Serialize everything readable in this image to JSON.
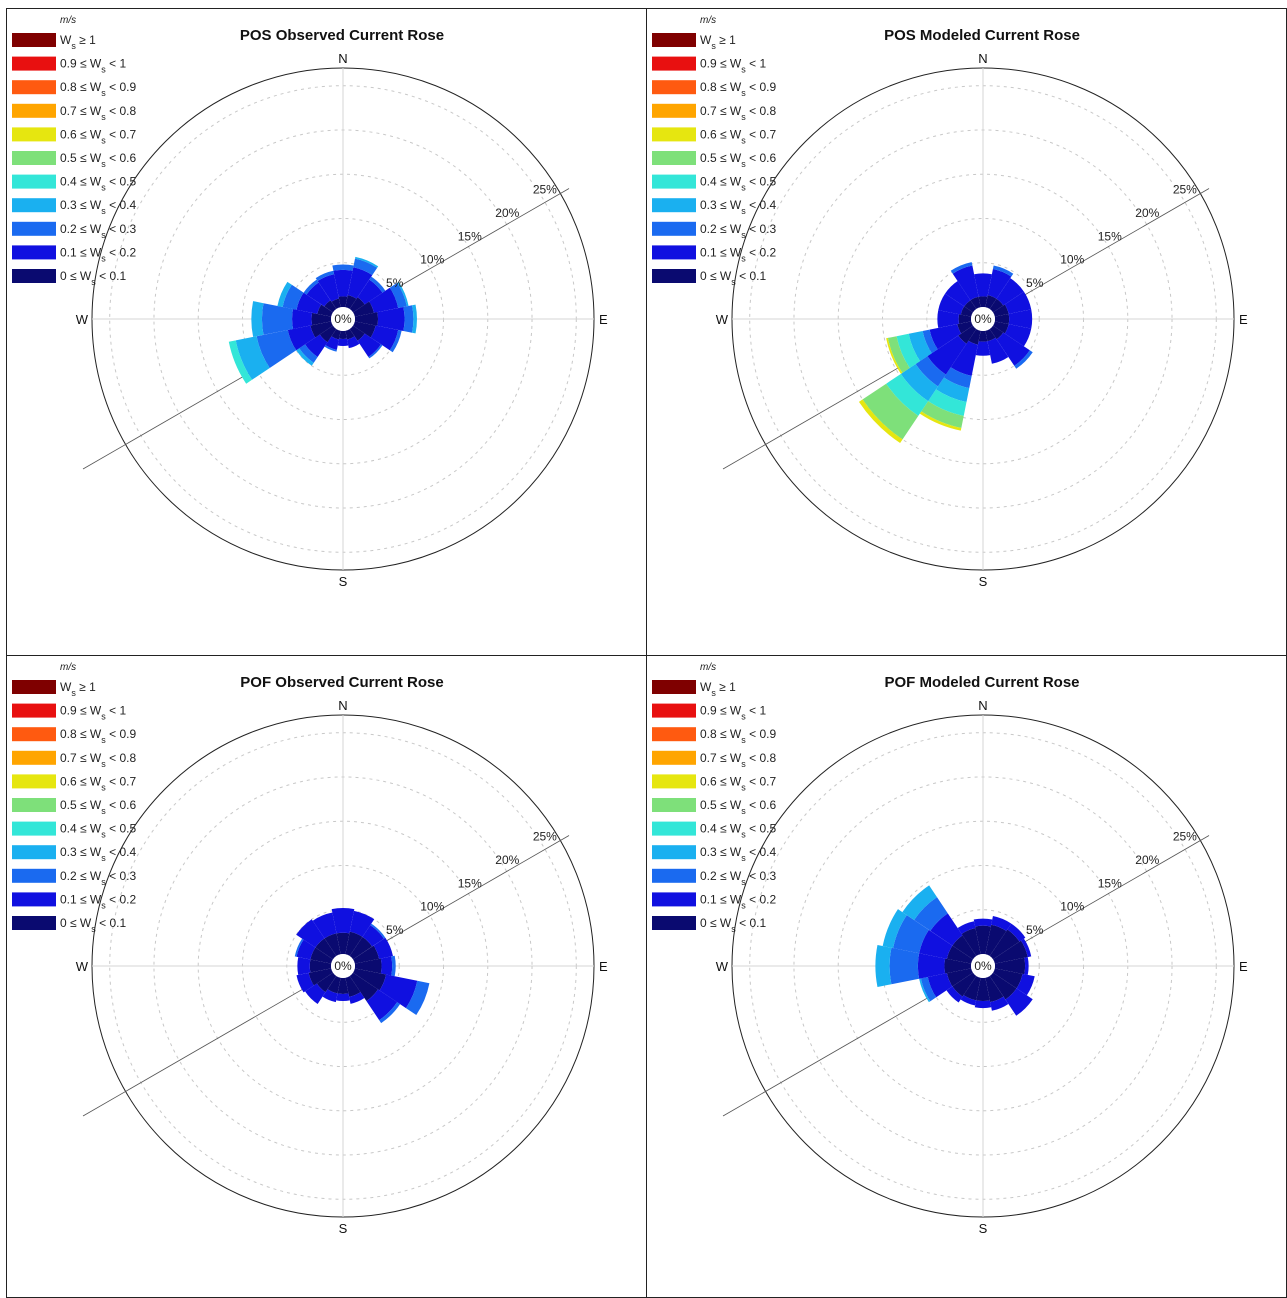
{
  "legend": {
    "unit": "m/s",
    "bins": [
      {
        "label": "W_s ≥ 1",
        "color": "#7f0000"
      },
      {
        "label": "0.9 ≤ W_s < 1",
        "color": "#e81010"
      },
      {
        "label": "0.8 ≤ W_s < 0.9",
        "color": "#ff5a10"
      },
      {
        "label": "0.7 ≤ W_s < 0.8",
        "color": "#ffa500"
      },
      {
        "label": "0.6 ≤ W_s < 0.7",
        "color": "#e6e610"
      },
      {
        "label": "0.5 ≤ W_s < 0.6",
        "color": "#7ee07a"
      },
      {
        "label": "0.4 ≤ W_s < 0.5",
        "color": "#33e6d8"
      },
      {
        "label": "0.3 ≤ W_s < 0.4",
        "color": "#1ab0f0"
      },
      {
        "label": "0.2 ≤ W_s < 0.3",
        "color": "#1a6af0"
      },
      {
        "label": "0.1 ≤ W_s < 0.2",
        "color": "#1010e0"
      },
      {
        "label": "0 ≤ W_s < 0.1",
        "color": "#0a0a70"
      }
    ]
  },
  "directions": {
    "n": "N",
    "e": "E",
    "s": "S",
    "w": "W"
  },
  "center_label": "0%",
  "chart_data": [
    {
      "type": "windrose",
      "title": "POS Observed Current Rose",
      "radial_ticks": [
        "5%",
        "10%",
        "15%",
        "20%",
        "25%"
      ],
      "rmax": 27,
      "sectors_deg": [
        0,
        22.5,
        45,
        67.5,
        90,
        112.5,
        135,
        157.5,
        180,
        202.5,
        225,
        247.5,
        270,
        292.5,
        315,
        337.5
      ],
      "series": [
        {
          "bin": "0 ≤ W_s < 0.1",
          "values": [
            1.2,
            1.4,
            1.6,
            2.2,
            2.6,
            2.4,
            1.6,
            1.0,
            0.9,
            1.0,
            1.8,
            2.4,
            2.2,
            1.6,
            1.2,
            1.0
          ]
        },
        {
          "bin": "0.1 ≤ W_s < 0.2",
          "values": [
            3.0,
            3.2,
            2.4,
            2.8,
            3.0,
            2.6,
            2.2,
            1.0,
            0.8,
            1.2,
            2.0,
            2.6,
            2.2,
            2.4,
            2.4,
            2.8
          ]
        },
        {
          "bin": "0.2 ≤ W_s < 0.3",
          "values": [
            0.6,
            1.0,
            0.4,
            1.0,
            1.0,
            0.4,
            0.2,
            0.0,
            0.0,
            0.2,
            0.8,
            3.6,
            3.4,
            1.6,
            0.4,
            0.4
          ]
        },
        {
          "bin": "0.3 ≤ W_s < 0.4",
          "values": [
            0.0,
            0.2,
            0.0,
            0.2,
            0.4,
            0.0,
            0.0,
            0.0,
            0.0,
            0.0,
            0.4,
            2.4,
            1.2,
            0.6,
            0.0,
            0.0
          ]
        },
        {
          "bin": "0.4 ≤ W_s < 0.5",
          "values": [
            0.0,
            0.0,
            0.0,
            0.0,
            0.0,
            0.0,
            0.0,
            0.0,
            0.0,
            0.0,
            0.0,
            0.8,
            0.0,
            0.0,
            0.0,
            0.0
          ]
        }
      ]
    },
    {
      "type": "windrose",
      "title": "POS Modeled Current Rose",
      "radial_ticks": [
        "5%",
        "10%",
        "15%",
        "20%",
        "25%"
      ],
      "rmax": 27,
      "sectors_deg": [
        0,
        22.5,
        45,
        67.5,
        90,
        112.5,
        135,
        157.5,
        180,
        202.5,
        225,
        247.5,
        270,
        292.5,
        315,
        337.5
      ],
      "series": [
        {
          "bin": "0 ≤ W_s < 0.1",
          "values": [
            1.2,
            1.4,
            1.4,
            1.6,
            1.6,
            1.6,
            1.4,
            1.2,
            1.2,
            1.6,
            2.0,
            1.6,
            1.4,
            1.2,
            1.2,
            1.2
          ]
        },
        {
          "bin": "0.1 ≤ W_s < 0.2",
          "values": [
            2.6,
            3.0,
            2.8,
            2.6,
            2.6,
            2.6,
            3.6,
            2.6,
            1.6,
            3.6,
            4.2,
            3.2,
            2.4,
            2.6,
            2.6,
            3.6
          ]
        },
        {
          "bin": "0.2 ≤ W_s < 0.3",
          "values": [
            0.0,
            0.4,
            0.0,
            0.0,
            0.0,
            0.0,
            0.4,
            0.0,
            0.0,
            1.4,
            1.6,
            0.8,
            0.0,
            0.0,
            0.0,
            0.4
          ]
        },
        {
          "bin": "0.3 ≤ W_s < 0.4",
          "values": [
            0.0,
            0.0,
            0.0,
            0.0,
            0.0,
            0.0,
            0.0,
            0.0,
            0.0,
            1.6,
            2.0,
            1.6,
            0.0,
            0.0,
            0.0,
            0.0
          ]
        },
        {
          "bin": "0.4 ≤ W_s < 0.5",
          "values": [
            0.0,
            0.0,
            0.0,
            0.0,
            0.0,
            0.0,
            0.0,
            0.0,
            0.0,
            1.6,
            2.0,
            1.4,
            0.0,
            0.0,
            0.0,
            0.0
          ]
        },
        {
          "bin": "0.5 ≤ W_s < 0.6",
          "values": [
            0.0,
            0.0,
            0.0,
            0.0,
            0.0,
            0.0,
            0.0,
            0.0,
            0.0,
            1.4,
            3.2,
            1.0,
            0.0,
            0.0,
            0.0,
            0.0
          ]
        },
        {
          "bin": "0.6 ≤ W_s < 0.7",
          "values": [
            0.0,
            0.0,
            0.0,
            0.0,
            0.0,
            0.0,
            0.0,
            0.0,
            0.0,
            0.3,
            0.5,
            0.2,
            0.0,
            0.0,
            0.0,
            0.0
          ]
        }
      ]
    },
    {
      "type": "windrose",
      "title": "POF Observed Current Rose",
      "radial_ticks": [
        "5%",
        "10%",
        "15%",
        "20%",
        "25%"
      ],
      "rmax": 27,
      "sectors_deg": [
        0,
        22.5,
        45,
        67.5,
        90,
        112.5,
        135,
        157.5,
        180,
        202.5,
        225,
        247.5,
        270,
        292.5,
        315,
        337.5
      ],
      "series": [
        {
          "bin": "0 ≤ W_s < 0.1",
          "values": [
            2.4,
            2.6,
            2.6,
            2.8,
            3.0,
            3.6,
            3.4,
            2.2,
            1.8,
            1.8,
            2.2,
            2.6,
            2.4,
            2.4,
            2.4,
            2.4
          ]
        },
        {
          "bin": "0.1 ≤ W_s < 0.2",
          "values": [
            2.8,
            2.4,
            1.6,
            1.6,
            1.2,
            3.6,
            2.6,
            0.8,
            0.8,
            1.0,
            1.6,
            1.4,
            1.4,
            1.6,
            2.6,
            2.4
          ]
        },
        {
          "bin": "0.2 ≤ W_s < 0.3",
          "values": [
            0.0,
            0.0,
            0.2,
            0.0,
            0.4,
            1.4,
            0.4,
            0.0,
            0.0,
            0.0,
            0.0,
            0.0,
            0.0,
            0.2,
            0.0,
            0.0
          ]
        }
      ]
    },
    {
      "type": "windrose",
      "title": "POF Modeled Current Rose",
      "radial_ticks": [
        "5%",
        "10%",
        "15%",
        "20%",
        "25%"
      ],
      "rmax": 27,
      "sectors_deg": [
        0,
        22.5,
        45,
        67.5,
        90,
        112.5,
        135,
        157.5,
        180,
        202.5,
        225,
        247.5,
        270,
        292.5,
        315,
        337.5
      ],
      "series": [
        {
          "bin": "0 ≤ W_s < 0.1",
          "values": [
            3.2,
            3.4,
            3.6,
            3.8,
            3.4,
            3.2,
            3.2,
            2.8,
            2.6,
            2.6,
            2.8,
            2.8,
            3.0,
            2.8,
            2.8,
            3.0
          ]
        },
        {
          "bin": "0.1 ≤ W_s < 0.2",
          "values": [
            0.8,
            1.0,
            0.8,
            0.4,
            0.4,
            1.4,
            2.2,
            1.0,
            0.8,
            0.6,
            0.8,
            2.2,
            3.0,
            3.2,
            3.0,
            0.8
          ]
        },
        {
          "bin": "0.2 ≤ W_s < 0.3",
          "values": [
            0.0,
            0.0,
            0.0,
            0.0,
            0.0,
            0.0,
            0.0,
            0.0,
            0.0,
            0.0,
            0.0,
            0.8,
            3.2,
            3.0,
            2.2,
            0.0
          ]
        },
        {
          "bin": "0.3 ≤ W_s < 0.4",
          "values": [
            0.0,
            0.0,
            0.0,
            0.0,
            0.0,
            0.0,
            0.0,
            0.0,
            0.0,
            0.0,
            0.0,
            0.2,
            1.6,
            1.2,
            1.6,
            0.0
          ]
        }
      ]
    }
  ]
}
